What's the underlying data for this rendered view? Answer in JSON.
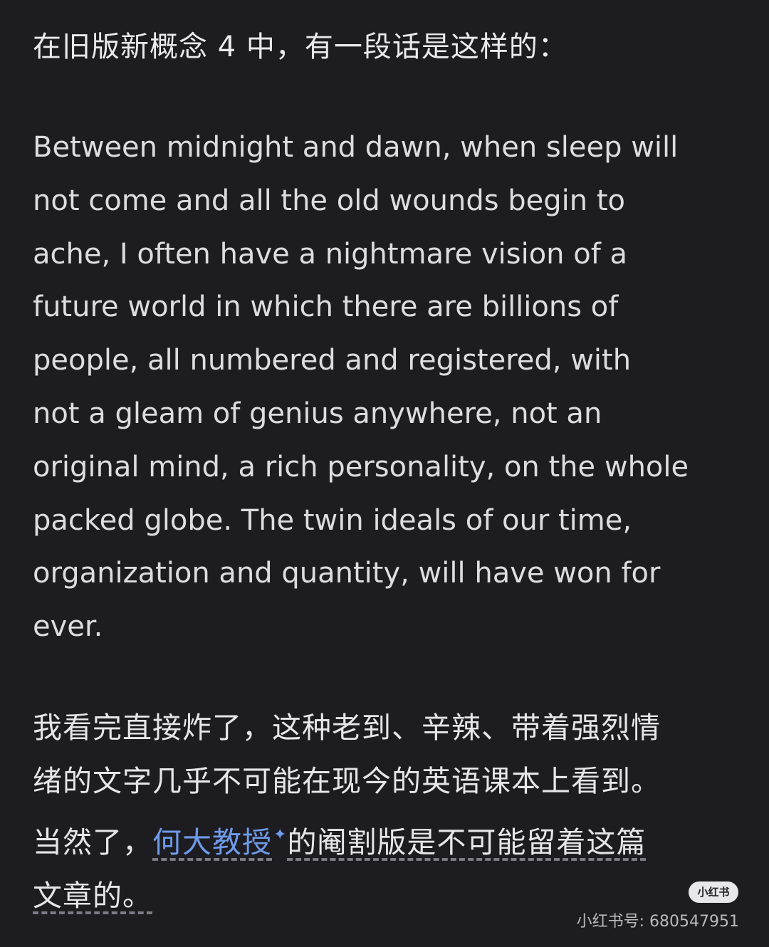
{
  "heading": "在旧版新概念 4 中，有一段话是这样的：",
  "quote_lines": [
    "Between midnight and dawn, when sleep will",
    "not come and all the old wounds begin to",
    "ache, I often have a nightmare vision of a",
    "future world in which there are billions of",
    "people, all numbered and registered, with",
    "not a gleam of genius anywhere, not an",
    "original mind, a rich personality, on the whole",
    "packed globe. The twin ideals of our time,",
    "organization and quantity, will have won for",
    "ever."
  ],
  "comment": {
    "line1": "我看完直接炸了，这种老到、辛辣、带着强烈情",
    "line2": "绪的文字几乎不可能在现今的英语课本上看到。",
    "line3_prefix": "当然了，",
    "line3_link": "何大教授",
    "line3_spark": "✦",
    "line3_suffix": "的阉割版是不可能留着这篇",
    "line4": "文章的。"
  },
  "watermark": {
    "badge": "小红书",
    "id_text": "小红书号: 680547951"
  }
}
